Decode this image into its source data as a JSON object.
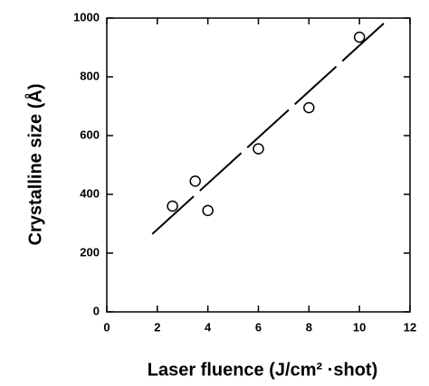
{
  "chart_data": {
    "type": "scatter",
    "x_label": "Laser fluence  (J/cm² ·shot)",
    "y_label": "Crystalline size (Å)",
    "x": [
      2.6,
      3.5,
      4,
      6,
      8,
      10
    ],
    "values": [
      360,
      445,
      345,
      555,
      695,
      935
    ],
    "color": "#000000",
    "fit_line": {
      "x": [
        1.8,
        11
      ],
      "values": [
        265,
        985
      ]
    },
    "xlim": [
      0,
      12
    ],
    "ylim": [
      0,
      1000
    ],
    "xticks": [
      0,
      2,
      4,
      6,
      8,
      10,
      12
    ],
    "yticks": [
      0,
      200,
      400,
      600,
      800,
      1000
    ],
    "grid": false
  }
}
